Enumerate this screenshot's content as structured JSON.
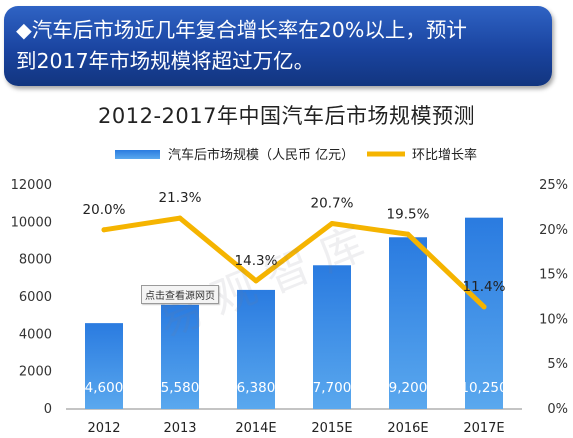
{
  "banner": {
    "line1": "◆汽车后市场近几年复合增长率在20%以上，预计",
    "line2": "到2017年市场规模将超过万亿。"
  },
  "watermark": "易观智库",
  "source_button": "点击查看源网页",
  "chart_data": {
    "type": "bar",
    "title": "2012-2017年中国汽车后市场规模预测",
    "categories": [
      "2012",
      "2013",
      "2014E",
      "2015E",
      "2016E",
      "2017E"
    ],
    "series": [
      {
        "name": "汽车后市场规模（人民币 亿元）",
        "type": "bar",
        "axis": "left",
        "values": [
          4600,
          5580,
          6380,
          7700,
          9200,
          10250
        ],
        "labels": [
          "4,600",
          "5,580",
          "6,380",
          "7,700",
          "9,200",
          "10,250"
        ],
        "color": "#2e7fd6"
      },
      {
        "name": "环比增长率",
        "type": "line",
        "axis": "right",
        "values": [
          20.0,
          21.3,
          14.3,
          20.7,
          19.5,
          11.4
        ],
        "labels": [
          "20.0%",
          "21.3%",
          "14.3%",
          "20.7%",
          "19.5%",
          "11.4%"
        ],
        "color": "#f5b400"
      }
    ],
    "y_left": {
      "ylim": [
        0,
        12000
      ],
      "ticks": [
        "0",
        "2000",
        "4000",
        "6000",
        "8000",
        "10000",
        "12000"
      ]
    },
    "y_right": {
      "ylim": [
        0,
        25
      ],
      "ticks": [
        "0%",
        "5%",
        "10%",
        "15%",
        "20%",
        "25%"
      ]
    },
    "legend": "top-center",
    "grid": false
  }
}
